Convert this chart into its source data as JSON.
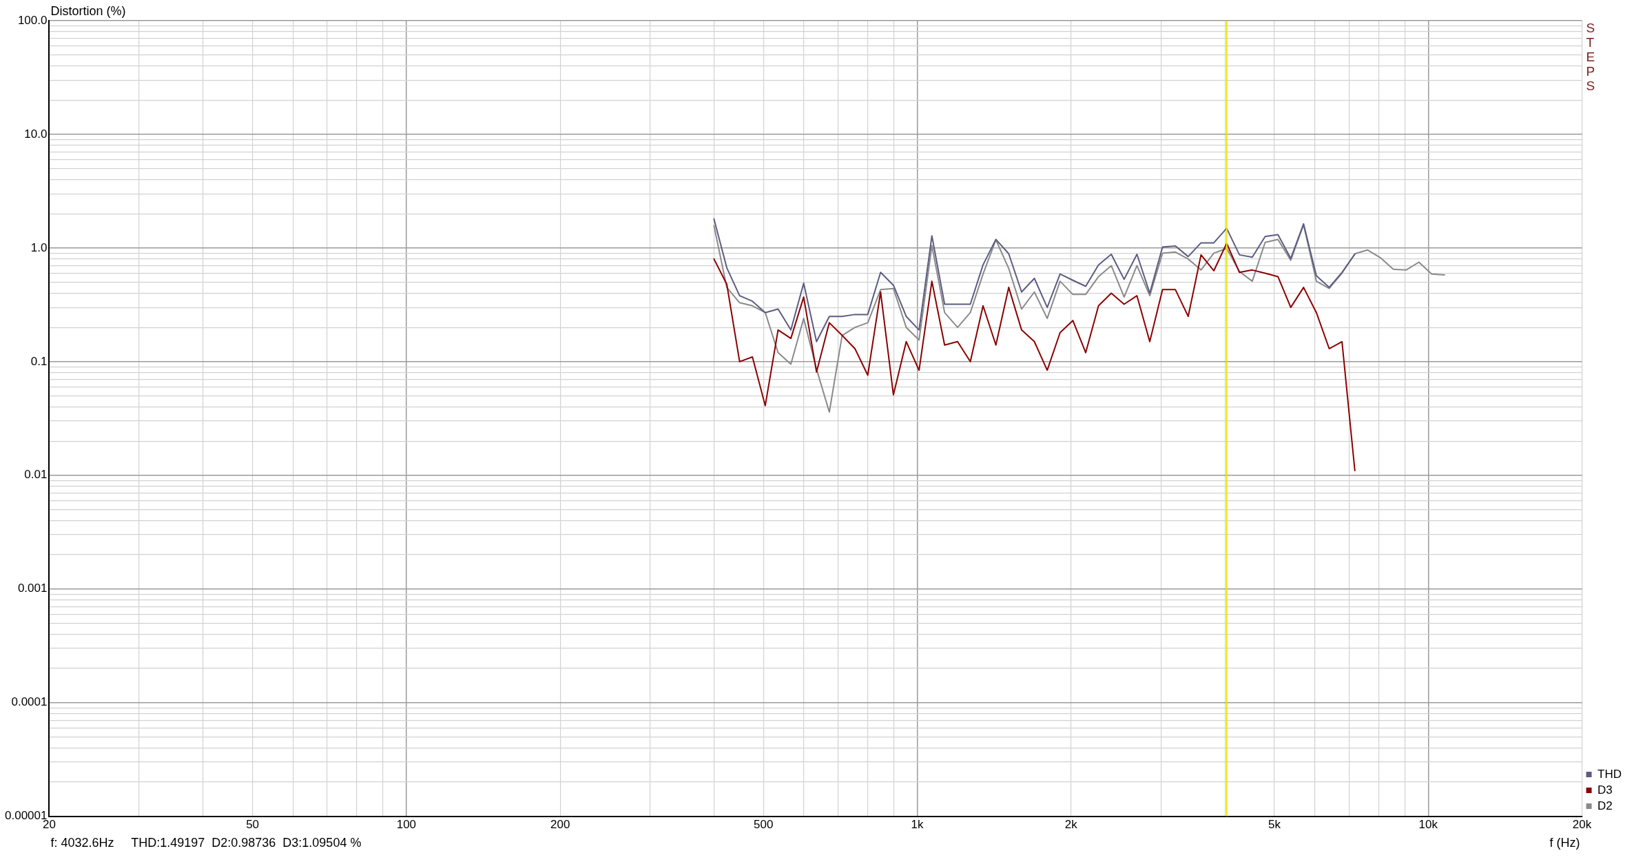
{
  "chart_data": {
    "type": "line",
    "ylabel": "Distortion (%)",
    "xlabel": "f (Hz)",
    "log": "xy",
    "grid": true,
    "legend": "bottom right",
    "marker": "none",
    "line_style": "solid",
    "xlim": [
      20,
      20000
    ],
    "xticks": [
      20,
      {
        "value": 30,
        "label": null
      },
      {
        "value": 40,
        "label": null
      },
      50,
      {
        "value": 60,
        "label": null
      },
      {
        "value": 70,
        "label": null
      },
      {
        "value": 80,
        "label": null
      },
      {
        "value": 90,
        "label": null
      },
      100,
      200,
      {
        "value": 300,
        "label": null
      },
      {
        "value": 400,
        "label": null
      },
      500,
      {
        "value": 600,
        "label": null
      },
      {
        "value": 700,
        "label": null
      },
      {
        "value": 800,
        "label": null
      },
      {
        "value": 900,
        "label": null
      },
      {
        "value": 1000,
        "label": "1k"
      },
      {
        "value": 2000,
        "label": "2k"
      },
      {
        "value": 3000,
        "label": null
      },
      {
        "value": 4000,
        "label": null
      },
      {
        "value": 5000,
        "label": "5k"
      },
      {
        "value": 6000,
        "label": null
      },
      {
        "value": 7000,
        "label": null
      },
      {
        "value": 8000,
        "label": null
      },
      {
        "value": 9000,
        "label": null
      },
      {
        "value": 10000,
        "label": "10k"
      },
      {
        "value": 20000,
        "label": "20k"
      }
    ],
    "ylim": [
      1e-05,
      100
    ],
    "yticks": [
      {
        "value": 1e-05,
        "label": "0.00001"
      },
      {
        "value": 2e-05,
        "label": null
      },
      {
        "value": 3e-05,
        "label": null
      },
      {
        "value": 4e-05,
        "label": null
      },
      {
        "value": 5e-05,
        "label": null
      },
      {
        "value": 6e-05,
        "label": null
      },
      {
        "value": 7e-05,
        "label": null
      },
      {
        "value": 8e-05,
        "label": null
      },
      {
        "value": 9e-05,
        "label": null
      },
      0.0001,
      {
        "value": 0.0002,
        "label": null
      },
      {
        "value": 0.0003,
        "label": null
      },
      {
        "value": 0.0004,
        "label": null
      },
      {
        "value": 0.0005,
        "label": null
      },
      {
        "value": 0.0006,
        "label": null
      },
      {
        "value": 0.0007,
        "label": null
      },
      {
        "value": 0.0008,
        "label": null
      },
      {
        "value": 0.0009,
        "label": null
      },
      0.001,
      {
        "value": 0.002,
        "label": null
      },
      {
        "value": 0.003,
        "label": null
      },
      {
        "value": 0.004,
        "label": null
      },
      {
        "value": 0.005,
        "label": null
      },
      {
        "value": 0.006,
        "label": null
      },
      {
        "value": 0.007,
        "label": null
      },
      {
        "value": 0.008,
        "label": null
      },
      {
        "value": 0.009,
        "label": null
      },
      0.01,
      {
        "value": 0.02,
        "label": null
      },
      {
        "value": 0.03,
        "label": null
      },
      {
        "value": 0.04,
        "label": null
      },
      {
        "value": 0.05,
        "label": null
      },
      {
        "value": 0.06,
        "label": null
      },
      {
        "value": 0.07,
        "label": null
      },
      {
        "value": 0.08,
        "label": null
      },
      {
        "value": 0.09,
        "label": null
      },
      0.1,
      {
        "value": 0.2,
        "label": null
      },
      {
        "value": 0.3,
        "label": null
      },
      {
        "value": 0.4,
        "label": null
      },
      {
        "value": 0.5,
        "label": null
      },
      {
        "value": 0.6,
        "label": null
      },
      {
        "value": 0.7,
        "label": null
      },
      {
        "value": 0.8,
        "label": null
      },
      {
        "value": 0.9,
        "label": null
      },
      {
        "value": 1,
        "label": "1.0"
      },
      {
        "value": 2,
        "label": null
      },
      {
        "value": 3,
        "label": null
      },
      {
        "value": 4,
        "label": null
      },
      {
        "value": 5,
        "label": null
      },
      {
        "value": 6,
        "label": null
      },
      {
        "value": 7,
        "label": null
      },
      {
        "value": 8,
        "label": null
      },
      {
        "value": 9,
        "label": null
      },
      {
        "value": 10,
        "label": "10.0"
      },
      {
        "value": 20,
        "label": null
      },
      {
        "value": 30,
        "label": null
      },
      {
        "value": 40,
        "label": null
      },
      {
        "value": 50,
        "label": null
      },
      {
        "value": 60,
        "label": null
      },
      {
        "value": 70,
        "label": null
      },
      {
        "value": 80,
        "label": null
      },
      {
        "value": 90,
        "label": null
      },
      {
        "value": 100,
        "label": "100.0"
      }
    ],
    "ref_lines": [
      {
        "axis": "x",
        "value": 4032.6,
        "label": null,
        "color": "#e8e800"
      }
    ],
    "annotations": [
      "f: 4032.6Hz     THD:1.49197  D2:0.98736  D3:1.09504 %",
      "STEPS"
    ],
    "series": [
      {
        "name": "THD",
        "color": "#5b5b82",
        "x": [
          400,
          423.8,
          449,
          475.7,
          504,
          534,
          565.7,
          599.3,
          635,
          672.7,
          712.7,
          755.1,
          800,
          847.6,
          898,
          951.4,
          1008,
          1068,
          1131,
          1199,
          1270,
          1345,
          1425,
          1510,
          1600,
          1695,
          1796,
          1903,
          2016,
          2136,
          2263,
          2397,
          2540,
          2691,
          2851,
          3020,
          3200,
          3390,
          3592,
          3805,
          4032,
          4271,
          4525,
          4795,
          5080,
          5382,
          5702,
          6041,
          6400,
          6780,
          7184
        ],
        "values": [
          1.8,
          0.67,
          0.38,
          0.34,
          0.27,
          0.29,
          0.19,
          0.49,
          0.15,
          0.25,
          0.25,
          0.26,
          0.26,
          0.61,
          0.47,
          0.25,
          0.19,
          1.28,
          0.32,
          0.32,
          0.32,
          0.71,
          1.19,
          0.89,
          0.41,
          0.54,
          0.3,
          0.59,
          0.52,
          0.46,
          0.71,
          0.88,
          0.53,
          0.88,
          0.4,
          1.02,
          1.04,
          0.84,
          1.11,
          1.11,
          1.49,
          0.87,
          0.83,
          1.26,
          1.31,
          0.81,
          1.63,
          0.57,
          0.45,
          0.61,
          0.88
        ]
      },
      {
        "name": "D3",
        "color": "#8b0000",
        "x": [
          400,
          423.8,
          449,
          475.7,
          504,
          534,
          565.7,
          599.3,
          635,
          672.7,
          712.7,
          755.1,
          800,
          847.6,
          898,
          951.4,
          1008,
          1068,
          1131,
          1199,
          1270,
          1345,
          1425,
          1510,
          1600,
          1695,
          1796,
          1903,
          2016,
          2136,
          2263,
          2397,
          2540,
          2691,
          2851,
          3020,
          3200,
          3390,
          3592,
          3805,
          4032,
          4271,
          4525,
          4795,
          5080,
          5382,
          5702,
          6041,
          6400,
          6780,
          7184
        ],
        "values": [
          0.8,
          0.48,
          0.1,
          0.11,
          0.041,
          0.19,
          0.16,
          0.37,
          0.081,
          0.22,
          0.17,
          0.13,
          0.076,
          0.41,
          0.051,
          0.15,
          0.084,
          0.51,
          0.14,
          0.15,
          0.1,
          0.31,
          0.14,
          0.45,
          0.19,
          0.15,
          0.084,
          0.18,
          0.23,
          0.12,
          0.31,
          0.4,
          0.32,
          0.38,
          0.15,
          0.43,
          0.43,
          0.25,
          0.87,
          0.63,
          1.1,
          0.61,
          0.64,
          0.6,
          0.56,
          0.3,
          0.45,
          0.27,
          0.13,
          0.15,
          0.011
        ]
      },
      {
        "name": "D2",
        "color": "#8a8a8a",
        "x": [
          400,
          423.8,
          449,
          475.7,
          504,
          534,
          565.7,
          599.3,
          635,
          672.7,
          712.7,
          755.1,
          800,
          847.6,
          898,
          951.4,
          1008,
          1068,
          1131,
          1199,
          1270,
          1345,
          1425,
          1510,
          1600,
          1695,
          1796,
          1903,
          2016,
          2136,
          2263,
          2397,
          2540,
          2691,
          2851,
          3020,
          3200,
          3390,
          3592,
          3805,
          4032,
          4271,
          4525,
          4795,
          5080,
          5382,
          5702,
          6041,
          6400,
          6780,
          7184,
          7611,
          8063,
          8543,
          9051,
          9589,
          10159,
          10763
        ],
        "values": [
          1.57,
          0.45,
          0.33,
          0.31,
          0.27,
          0.12,
          0.095,
          0.24,
          0.086,
          0.036,
          0.17,
          0.2,
          0.22,
          0.43,
          0.44,
          0.2,
          0.155,
          1.05,
          0.27,
          0.2,
          0.27,
          0.59,
          1.18,
          0.66,
          0.29,
          0.41,
          0.24,
          0.51,
          0.39,
          0.39,
          0.56,
          0.7,
          0.37,
          0.7,
          0.38,
          0.9,
          0.92,
          0.8,
          0.64,
          0.9,
          0.99,
          0.62,
          0.51,
          1.12,
          1.19,
          0.78,
          1.6,
          0.51,
          0.44,
          0.6,
          0.89,
          0.96,
          0.82,
          0.65,
          0.64,
          0.75,
          0.59,
          0.58
        ]
      }
    ]
  }
}
